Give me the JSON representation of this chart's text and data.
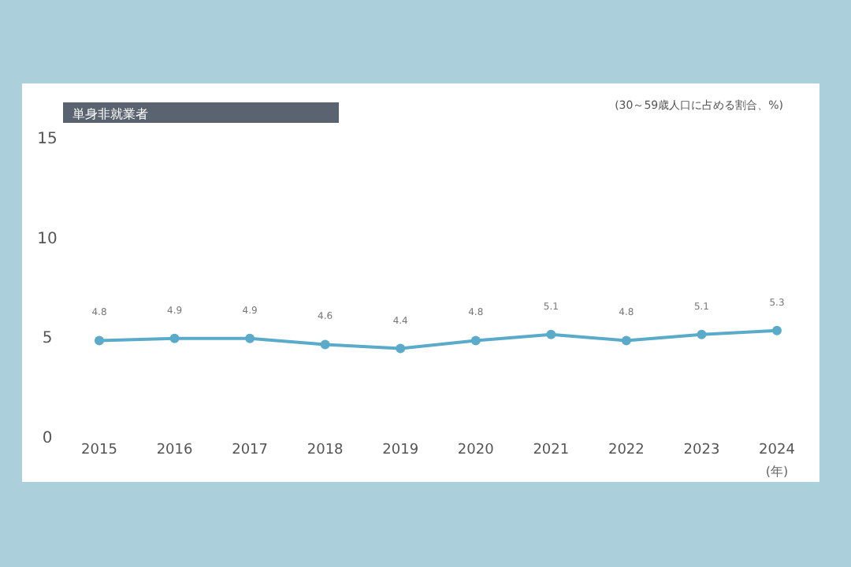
{
  "chart_data": {
    "type": "line",
    "title": "単身非就業者",
    "ylabel": "(30～59歳人口に占める割合、%)",
    "xlabel": "(年)",
    "categories": [
      "2015",
      "2016",
      "2017",
      "2018",
      "2019",
      "2020",
      "2021",
      "2022",
      "2023",
      "2024"
    ],
    "series": [
      {
        "color": "#5aaac9",
        "values": [
          4.8,
          4.9,
          4.9,
          4.6,
          4.4,
          4.8,
          5.1,
          4.8,
          5.1,
          5.3
        ]
      }
    ],
    "ylim": [
      0,
      15
    ],
    "yticks": [
      0,
      5,
      10,
      15
    ],
    "data_labels": true,
    "marker": "circle",
    "grid": false
  }
}
